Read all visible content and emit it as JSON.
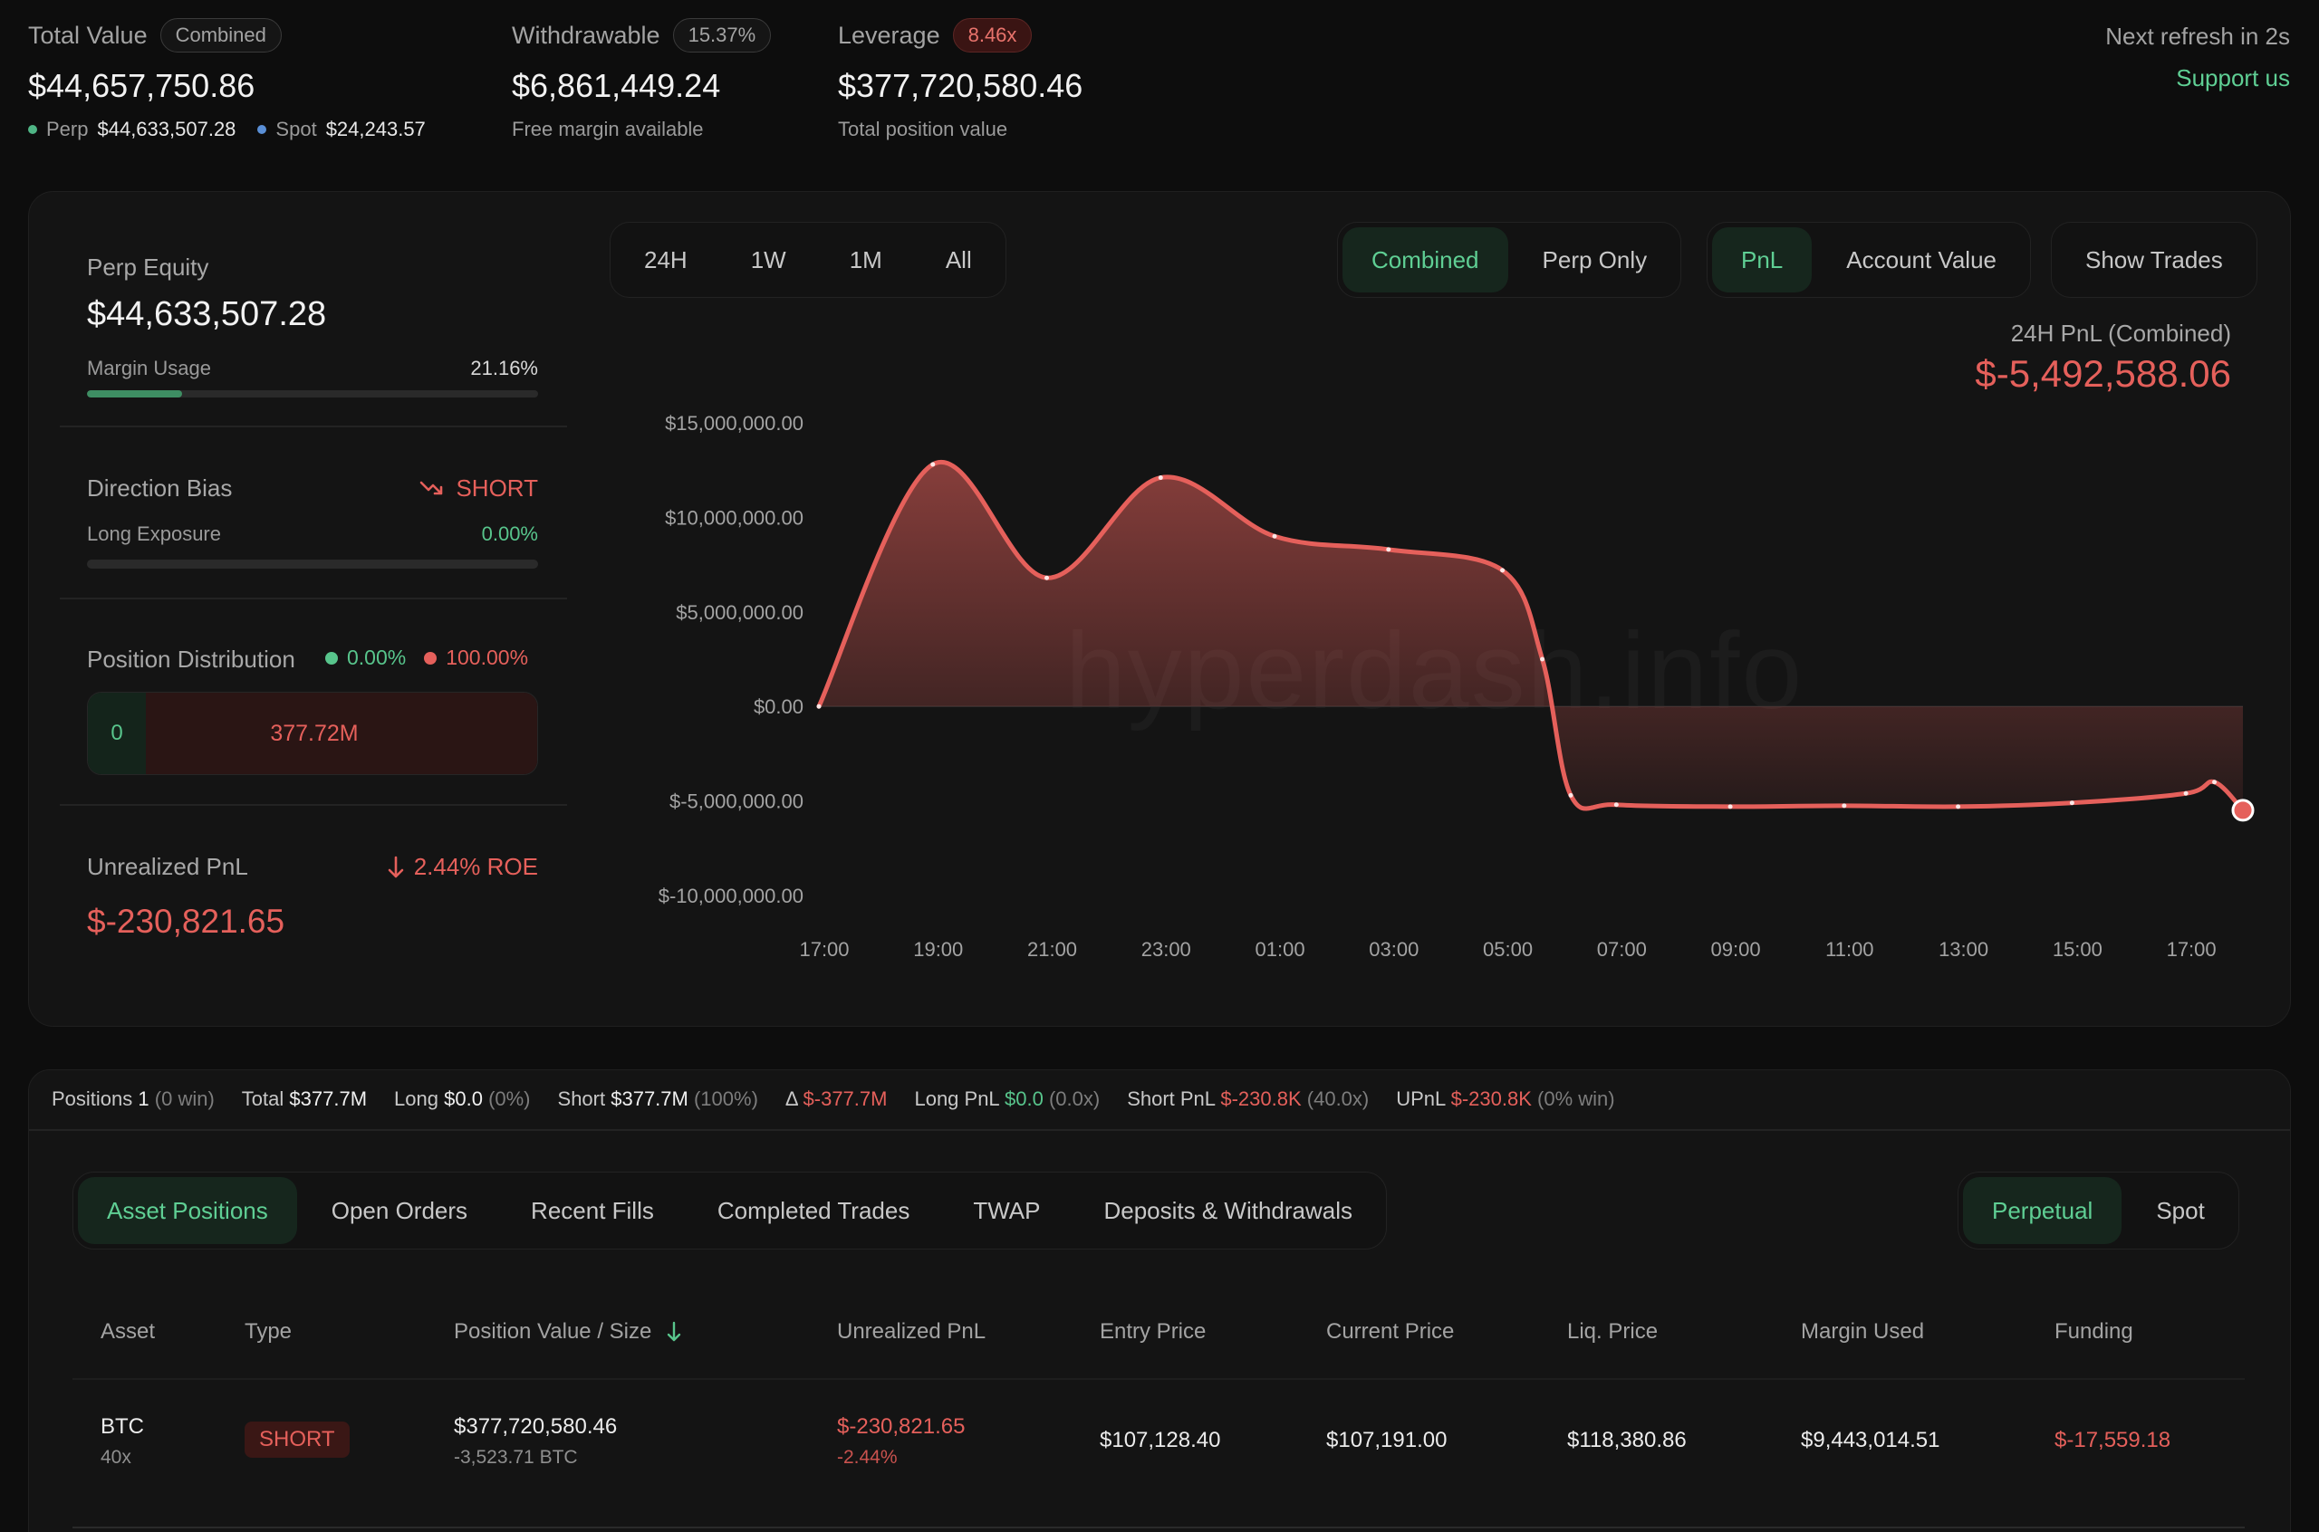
{
  "header": {
    "total_value": {
      "label": "Total Value",
      "badge": "Combined",
      "value": "$44,657,750.86",
      "perp_label": "Perp",
      "perp_value": "$44,633,507.28",
      "spot_label": "Spot",
      "spot_value": "$24,243.57"
    },
    "withdrawable": {
      "label": "Withdrawable",
      "badge": "15.37%",
      "value": "$6,861,449.24",
      "sub": "Free margin available"
    },
    "leverage": {
      "label": "Leverage",
      "badge": "8.46x",
      "value": "$377,720,580.46",
      "sub": "Total position value"
    },
    "refresh": "Next refresh in 2s",
    "support": "Support us"
  },
  "left_panel": {
    "perp_equity_label": "Perp Equity",
    "perp_equity_value": "$44,633,507.28",
    "margin_usage_label": "Margin Usage",
    "margin_usage_value": "21.16%",
    "margin_usage_fraction": 0.2116,
    "direction_bias_label": "Direction Bias",
    "direction_bias_value": "SHORT",
    "long_exposure_label": "Long Exposure",
    "long_exposure_value": "0.00%",
    "position_distribution_label": "Position Distribution",
    "dist_long_pct": "0.00%",
    "dist_short_pct": "100.00%",
    "dist_long_value": "0",
    "dist_short_value": "377.72M",
    "unrealized_label": "Unrealized PnL",
    "unrealized_roe": "2.44% ROE",
    "unrealized_value": "$-230,821.65"
  },
  "controls": {
    "ranges": [
      "24H",
      "1W",
      "1M",
      "All"
    ],
    "range_active": 0,
    "mode": [
      "Combined",
      "Perp Only"
    ],
    "metric": [
      "PnL",
      "Account Value"
    ],
    "show_trades": "Show Trades"
  },
  "chart_header": {
    "title": "24H PnL (Combined)",
    "value": "$-5,492,588.06"
  },
  "watermark": "hyperdash.info",
  "chart_data": {
    "type": "area",
    "title": "",
    "xlabel": "",
    "ylabel": "",
    "x_ticks": [
      "17:00",
      "19:00",
      "21:00",
      "23:00",
      "01:00",
      "03:00",
      "05:00",
      "07:00",
      "09:00",
      "11:00",
      "13:00",
      "15:00",
      "17:00"
    ],
    "y_ticks": [
      "$15,000,000.00",
      "$10,000,000.00",
      "$5,000,000.00",
      "$0.00",
      "$-5,000,000.00",
      "$-10,000,000.00"
    ],
    "ylim": [
      -10000000,
      15000000
    ],
    "grid": false,
    "series": [
      {
        "x": [
          0,
          2,
          4,
          6,
          8,
          10,
          12,
          12.7,
          13.2,
          14,
          16,
          18,
          20,
          22,
          24,
          24.5,
          25
        ],
        "y": [
          0,
          12800000,
          6800000,
          12100000,
          9000000,
          8300000,
          7200000,
          2500000,
          -4700000,
          -5200000,
          -5300000,
          -5250000,
          -5300000,
          -5100000,
          -4600000,
          -4000000,
          -5492588
        ],
        "color": "#e5605b"
      }
    ]
  },
  "stats": {
    "positions_label": "Positions",
    "positions_value": "1",
    "positions_meta": "(0 win)",
    "total_label": "Total",
    "total_value": "$377.7M",
    "long_label": "Long",
    "long_value": "$0.0",
    "long_meta": "(0%)",
    "short_label": "Short",
    "short_value": "$377.7M",
    "short_meta": "(100%)",
    "delta_label": "Δ",
    "delta_value": "$-377.7M",
    "long_pnl_label": "Long PnL",
    "long_pnl_value": "$0.0",
    "long_pnl_meta": "(0.0x)",
    "short_pnl_label": "Short PnL",
    "short_pnl_value": "$-230.8K",
    "short_pnl_meta": "(40.0x)",
    "upnl_label": "UPnL",
    "upnl_value": "$-230.8K",
    "upnl_meta": "(0% win)"
  },
  "tabs": [
    "Asset Positions",
    "Open Orders",
    "Recent Fills",
    "Completed Trades",
    "TWAP",
    "Deposits & Withdrawals"
  ],
  "market_tabs": [
    "Perpetual",
    "Spot"
  ],
  "table": {
    "headers": [
      "Asset",
      "Type",
      "Position Value / Size",
      "Unrealized PnL",
      "Entry Price",
      "Current Price",
      "Liq. Price",
      "Margin Used",
      "Funding"
    ],
    "rows": [
      {
        "asset": "BTC",
        "leverage": "40x",
        "type": "SHORT",
        "value": "$377,720,580.46",
        "size": "-3,523.71 BTC",
        "upnl": "$-230,821.65",
        "upnl_pct": "-2.44%",
        "entry": "$107,128.40",
        "current": "$107,191.00",
        "liq": "$118,380.86",
        "margin": "$9,443,014.51",
        "funding": "$-17,559.18"
      }
    ]
  }
}
